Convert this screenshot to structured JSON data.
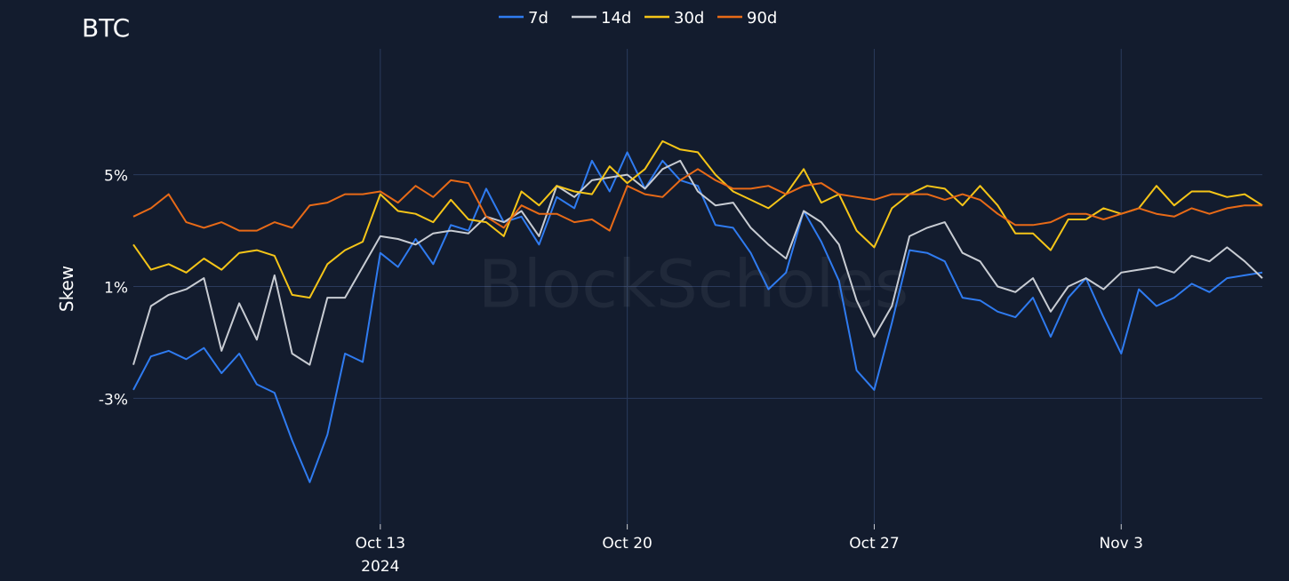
{
  "chart_data": {
    "type": "line",
    "title": "BTC",
    "ylabel": "Skew",
    "xlabel": "",
    "watermark": "BlockScholes",
    "x_domain": [
      "2024-10-06",
      "2024-11-07"
    ],
    "x_ticks": [
      {
        "date": "2024-10-13",
        "label": "Oct 13",
        "sublabel": "2024"
      },
      {
        "date": "2024-10-20",
        "label": "Oct 20",
        "sublabel": ""
      },
      {
        "date": "2024-10-27",
        "label": "Oct 27",
        "sublabel": ""
      },
      {
        "date": "2024-11-03",
        "label": "Nov 3",
        "sublabel": ""
      }
    ],
    "y_ticks": [
      {
        "value": 5,
        "label": "5%"
      },
      {
        "value": 1,
        "label": "1%"
      },
      {
        "value": -3,
        "label": "-3%"
      }
    ],
    "ylim": [
      -7.5,
      9.5
    ],
    "grid": true,
    "legend_position": "top-center",
    "series": [
      {
        "name": "7d",
        "color": "#2f7bf0",
        "x": [
          "2024-10-06",
          "2024-10-06 12:00",
          "2024-10-07",
          "2024-10-07 12:00",
          "2024-10-08",
          "2024-10-08 12:00",
          "2024-10-09",
          "2024-10-09 12:00",
          "2024-10-10",
          "2024-10-10 12:00",
          "2024-10-11",
          "2024-10-11 12:00",
          "2024-10-12",
          "2024-10-12 12:00",
          "2024-10-13",
          "2024-10-13 12:00",
          "2024-10-14",
          "2024-10-14 12:00",
          "2024-10-15",
          "2024-10-15 12:00",
          "2024-10-16",
          "2024-10-16 12:00",
          "2024-10-17",
          "2024-10-17 12:00",
          "2024-10-18",
          "2024-10-18 12:00",
          "2024-10-19",
          "2024-10-19 12:00",
          "2024-10-20",
          "2024-10-20 12:00",
          "2024-10-21",
          "2024-10-21 12:00",
          "2024-10-22",
          "2024-10-22 12:00",
          "2024-10-23",
          "2024-10-23 12:00",
          "2024-10-24",
          "2024-10-24 12:00",
          "2024-10-25",
          "2024-10-25 12:00",
          "2024-10-26",
          "2024-10-26 12:00",
          "2024-10-27",
          "2024-10-27 12:00",
          "2024-10-28",
          "2024-10-28 12:00",
          "2024-10-29",
          "2024-10-29 12:00",
          "2024-10-30",
          "2024-10-30 12:00",
          "2024-10-31",
          "2024-10-31 12:00",
          "2024-11-01",
          "2024-11-01 12:00",
          "2024-11-02",
          "2024-11-02 12:00",
          "2024-11-03",
          "2024-11-03 12:00",
          "2024-11-04",
          "2024-11-04 12:00",
          "2024-11-05",
          "2024-11-05 12:00",
          "2024-11-06",
          "2024-11-06 12:00",
          "2024-11-07"
        ],
        "values": [
          -2.7,
          -1.5,
          -1.3,
          -1.6,
          -1.2,
          -2.1,
          -1.4,
          -2.5,
          -2.8,
          -4.5,
          -6.0,
          -4.3,
          -1.4,
          -1.7,
          2.2,
          1.7,
          2.7,
          1.8,
          3.2,
          3.0,
          4.5,
          3.3,
          3.5,
          2.5,
          4.2,
          3.8,
          5.5,
          4.4,
          5.8,
          4.5,
          5.5,
          4.8,
          4.6,
          3.2,
          3.1,
          2.2,
          0.9,
          1.5,
          3.7,
          2.6,
          1.2,
          -2.0,
          -2.7,
          -0.3,
          2.3,
          2.2,
          1.9,
          0.6,
          0.5,
          0.1,
          -0.1,
          0.6,
          -0.8,
          0.6,
          1.3,
          -0.1,
          -1.4,
          0.9,
          0.3,
          0.6,
          1.1,
          0.8,
          1.3,
          1.4,
          1.5
        ]
      },
      {
        "name": "14d",
        "color": "#c8ccd3",
        "x": [
          "2024-10-06",
          "2024-10-06 12:00",
          "2024-10-07",
          "2024-10-07 12:00",
          "2024-10-08",
          "2024-10-08 12:00",
          "2024-10-09",
          "2024-10-09 12:00",
          "2024-10-10",
          "2024-10-10 12:00",
          "2024-10-11",
          "2024-10-11 12:00",
          "2024-10-12",
          "2024-10-12 12:00",
          "2024-10-13",
          "2024-10-13 12:00",
          "2024-10-14",
          "2024-10-14 12:00",
          "2024-10-15",
          "2024-10-15 12:00",
          "2024-10-16",
          "2024-10-16 12:00",
          "2024-10-17",
          "2024-10-17 12:00",
          "2024-10-18",
          "2024-10-18 12:00",
          "2024-10-19",
          "2024-10-19 12:00",
          "2024-10-20",
          "2024-10-20 12:00",
          "2024-10-21",
          "2024-10-21 12:00",
          "2024-10-22",
          "2024-10-22 12:00",
          "2024-10-23",
          "2024-10-23 12:00",
          "2024-10-24",
          "2024-10-24 12:00",
          "2024-10-25",
          "2024-10-25 12:00",
          "2024-10-26",
          "2024-10-26 12:00",
          "2024-10-27",
          "2024-10-27 12:00",
          "2024-10-28",
          "2024-10-28 12:00",
          "2024-10-29",
          "2024-10-29 12:00",
          "2024-10-30",
          "2024-10-30 12:00",
          "2024-10-31",
          "2024-10-31 12:00",
          "2024-11-01",
          "2024-11-01 12:00",
          "2024-11-02",
          "2024-11-02 12:00",
          "2024-11-03",
          "2024-11-03 12:00",
          "2024-11-04",
          "2024-11-04 12:00",
          "2024-11-05",
          "2024-11-05 12:00",
          "2024-11-06",
          "2024-11-06 12:00",
          "2024-11-07"
        ],
        "values": [
          -1.8,
          0.3,
          0.7,
          0.9,
          1.3,
          -1.3,
          0.4,
          -0.9,
          1.4,
          -1.4,
          -1.8,
          0.6,
          0.6,
          1.7,
          2.8,
          2.7,
          2.5,
          2.9,
          3.0,
          2.9,
          3.5,
          3.3,
          3.7,
          2.8,
          4.6,
          4.2,
          4.8,
          4.9,
          5.0,
          4.5,
          5.2,
          5.5,
          4.4,
          3.9,
          4.0,
          3.1,
          2.5,
          2.0,
          3.7,
          3.3,
          2.5,
          0.5,
          -0.8,
          0.3,
          2.8,
          3.1,
          3.3,
          2.2,
          1.9,
          1.0,
          0.8,
          1.3,
          0.1,
          1.0,
          1.3,
          0.9,
          1.5,
          1.6,
          1.7,
          1.5,
          2.1,
          1.9,
          2.4,
          1.9,
          1.3
        ]
      },
      {
        "name": "30d",
        "color": "#f5c518",
        "x": [
          "2024-10-06",
          "2024-10-06 12:00",
          "2024-10-07",
          "2024-10-07 12:00",
          "2024-10-08",
          "2024-10-08 12:00",
          "2024-10-09",
          "2024-10-09 12:00",
          "2024-10-10",
          "2024-10-10 12:00",
          "2024-10-11",
          "2024-10-11 12:00",
          "2024-10-12",
          "2024-10-12 12:00",
          "2024-10-13",
          "2024-10-13 12:00",
          "2024-10-14",
          "2024-10-14 12:00",
          "2024-10-15",
          "2024-10-15 12:00",
          "2024-10-16",
          "2024-10-16 12:00",
          "2024-10-17",
          "2024-10-17 12:00",
          "2024-10-18",
          "2024-10-18 12:00",
          "2024-10-19",
          "2024-10-19 12:00",
          "2024-10-20",
          "2024-10-20 12:00",
          "2024-10-21",
          "2024-10-21 12:00",
          "2024-10-22",
          "2024-10-22 12:00",
          "2024-10-23",
          "2024-10-23 12:00",
          "2024-10-24",
          "2024-10-24 12:00",
          "2024-10-25",
          "2024-10-25 12:00",
          "2024-10-26",
          "2024-10-26 12:00",
          "2024-10-27",
          "2024-10-27 12:00",
          "2024-10-28",
          "2024-10-28 12:00",
          "2024-10-29",
          "2024-10-29 12:00",
          "2024-10-30",
          "2024-10-30 12:00",
          "2024-10-31",
          "2024-10-31 12:00",
          "2024-11-01",
          "2024-11-01 12:00",
          "2024-11-02",
          "2024-11-02 12:00",
          "2024-11-03",
          "2024-11-03 12:00",
          "2024-11-04",
          "2024-11-04 12:00",
          "2024-11-05",
          "2024-11-05 12:00",
          "2024-11-06",
          "2024-11-06 12:00",
          "2024-11-07"
        ],
        "values": [
          2.5,
          1.6,
          1.8,
          1.5,
          2.0,
          1.6,
          2.2,
          2.3,
          2.1,
          0.7,
          0.6,
          1.8,
          2.3,
          2.6,
          4.3,
          3.7,
          3.6,
          3.3,
          4.1,
          3.4,
          3.3,
          2.8,
          4.4,
          3.9,
          4.6,
          4.4,
          4.3,
          5.3,
          4.7,
          5.2,
          6.2,
          5.9,
          5.8,
          5.0,
          4.4,
          4.1,
          3.8,
          4.3,
          5.2,
          4.0,
          4.3,
          3.0,
          2.4,
          3.8,
          4.3,
          4.6,
          4.5,
          3.9,
          4.6,
          3.9,
          2.9,
          2.9,
          2.3,
          3.4,
          3.4,
          3.8,
          3.6,
          3.8,
          4.6,
          3.9,
          4.4,
          4.4,
          4.2,
          4.3,
          3.9
        ]
      },
      {
        "name": "90d",
        "color": "#e86a17",
        "x": [
          "2024-10-06",
          "2024-10-06 12:00",
          "2024-10-07",
          "2024-10-07 12:00",
          "2024-10-08",
          "2024-10-08 12:00",
          "2024-10-09",
          "2024-10-09 12:00",
          "2024-10-10",
          "2024-10-10 12:00",
          "2024-10-11",
          "2024-10-11 12:00",
          "2024-10-12",
          "2024-10-12 12:00",
          "2024-10-13",
          "2024-10-13 12:00",
          "2024-10-14",
          "2024-10-14 12:00",
          "2024-10-15",
          "2024-10-15 12:00",
          "2024-10-16",
          "2024-10-16 12:00",
          "2024-10-17",
          "2024-10-17 12:00",
          "2024-10-18",
          "2024-10-18 12:00",
          "2024-10-19",
          "2024-10-19 12:00",
          "2024-10-20",
          "2024-10-20 12:00",
          "2024-10-21",
          "2024-10-21 12:00",
          "2024-10-22",
          "2024-10-22 12:00",
          "2024-10-23",
          "2024-10-23 12:00",
          "2024-10-24",
          "2024-10-24 12:00",
          "2024-10-25",
          "2024-10-25 12:00",
          "2024-10-26",
          "2024-10-26 12:00",
          "2024-10-27",
          "2024-10-27 12:00",
          "2024-10-28",
          "2024-10-28 12:00",
          "2024-10-29",
          "2024-10-29 12:00",
          "2024-10-30",
          "2024-10-30 12:00",
          "2024-10-31",
          "2024-10-31 12:00",
          "2024-11-01",
          "2024-11-01 12:00",
          "2024-11-02",
          "2024-11-02 12:00",
          "2024-11-03",
          "2024-11-03 12:00",
          "2024-11-04",
          "2024-11-04 12:00",
          "2024-11-05",
          "2024-11-05 12:00",
          "2024-11-06",
          "2024-11-06 12:00",
          "2024-11-07"
        ],
        "values": [
          3.5,
          3.8,
          4.3,
          3.3,
          3.1,
          3.3,
          3.0,
          3.0,
          3.3,
          3.1,
          3.9,
          4.0,
          4.3,
          4.3,
          4.4,
          4.0,
          4.6,
          4.2,
          4.8,
          4.7,
          3.5,
          3.1,
          3.9,
          3.6,
          3.6,
          3.3,
          3.4,
          3.0,
          4.6,
          4.3,
          4.2,
          4.8,
          5.2,
          4.8,
          4.5,
          4.5,
          4.6,
          4.3,
          4.6,
          4.7,
          4.3,
          4.2,
          4.1,
          4.3,
          4.3,
          4.3,
          4.1,
          4.3,
          4.1,
          3.6,
          3.2,
          3.2,
          3.3,
          3.6,
          3.6,
          3.4,
          3.6,
          3.8,
          3.6,
          3.5,
          3.8,
          3.6,
          3.8,
          3.9,
          3.9
        ]
      }
    ]
  }
}
